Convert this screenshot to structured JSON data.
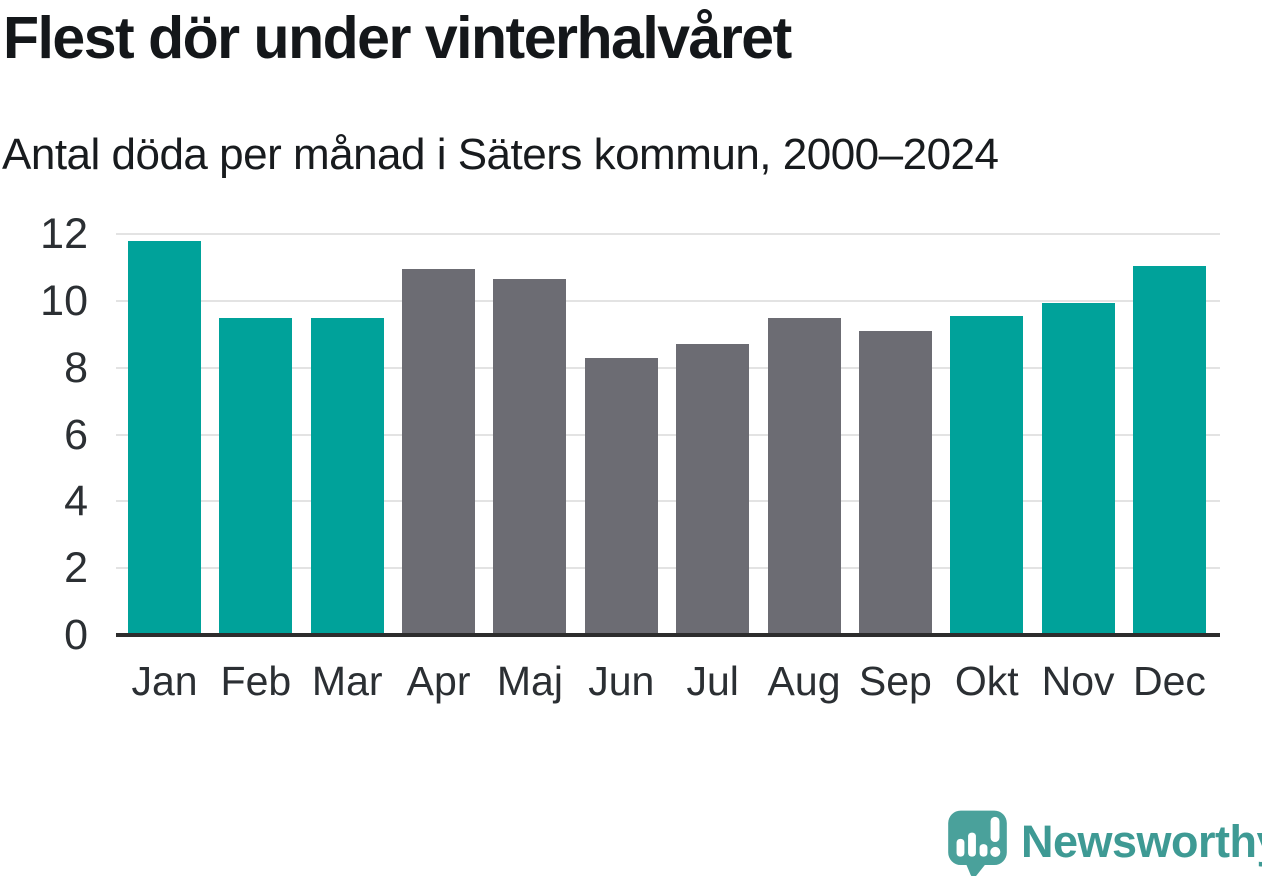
{
  "header": {
    "title": "Flest dör under vinterhalvåret",
    "subtitle": "Antal döda per månad i Säters kommun, 2000–2024"
  },
  "chart_data": {
    "type": "bar",
    "title": "Flest dör under vinterhalvåret",
    "subtitle": "Antal döda per månad i Säters kommun, 2000–2024",
    "categories": [
      "Jan",
      "Feb",
      "Mar",
      "Apr",
      "Maj",
      "Jun",
      "Jul",
      "Aug",
      "Sep",
      "Okt",
      "Nov",
      "Dec"
    ],
    "values": [
      11.8,
      9.5,
      9.5,
      10.95,
      10.65,
      8.3,
      8.7,
      9.5,
      9.1,
      9.55,
      9.95,
      11.05
    ],
    "highlighted": [
      true,
      true,
      true,
      false,
      false,
      false,
      false,
      false,
      false,
      true,
      true,
      true
    ],
    "xlabel": "",
    "ylabel": "",
    "ylim": [
      0,
      12
    ],
    "yticks": [
      0,
      2,
      4,
      6,
      8,
      10,
      12
    ],
    "grid": "horizontal",
    "legend": "none",
    "colors": {
      "highlight_bar": "#00a29a",
      "default_bar": "#6c6c73",
      "gridline": "#e3e3e3",
      "axis_line": "#2d2d2d",
      "tick_text": "#2b2f33"
    }
  },
  "footer": {
    "brand": "Newsworthy",
    "logo_icon": "newsworthy-speech-bubble-chart-icon",
    "brand_color": "#3e9a94",
    "icon_color": "#4aa19b"
  }
}
